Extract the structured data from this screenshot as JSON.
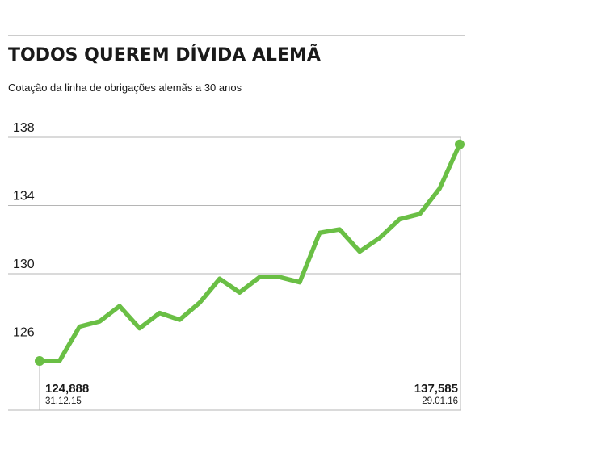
{
  "chart_data": {
    "type": "line",
    "title": "TODOS QUEREM DÍVIDA ALEMÃ",
    "subtitle": "Cotação da linha de obrigações alemãs a 30 anos",
    "xlabel": "",
    "ylabel": "",
    "ylim": [
      122,
      138
    ],
    "yticks": [
      126,
      130,
      134,
      138
    ],
    "grid": true,
    "legend": "none",
    "line_color": "#6abf45",
    "series": [
      {
        "values": [
          124.888,
          124.9,
          126.9,
          127.2,
          128.1,
          126.8,
          127.7,
          127.3,
          128.3,
          129.7,
          128.9,
          129.8,
          129.8,
          129.5,
          132.4,
          132.6,
          131.3,
          132.1,
          133.2,
          133.5,
          135.0,
          137.585
        ]
      }
    ],
    "annotations": [
      {
        "point_index": 0,
        "value_label": "124,888",
        "date_label": "31.12.15",
        "align": "start"
      },
      {
        "point_index": 21,
        "value_label": "137,585",
        "date_label": "29.01.16",
        "align": "end"
      }
    ]
  }
}
